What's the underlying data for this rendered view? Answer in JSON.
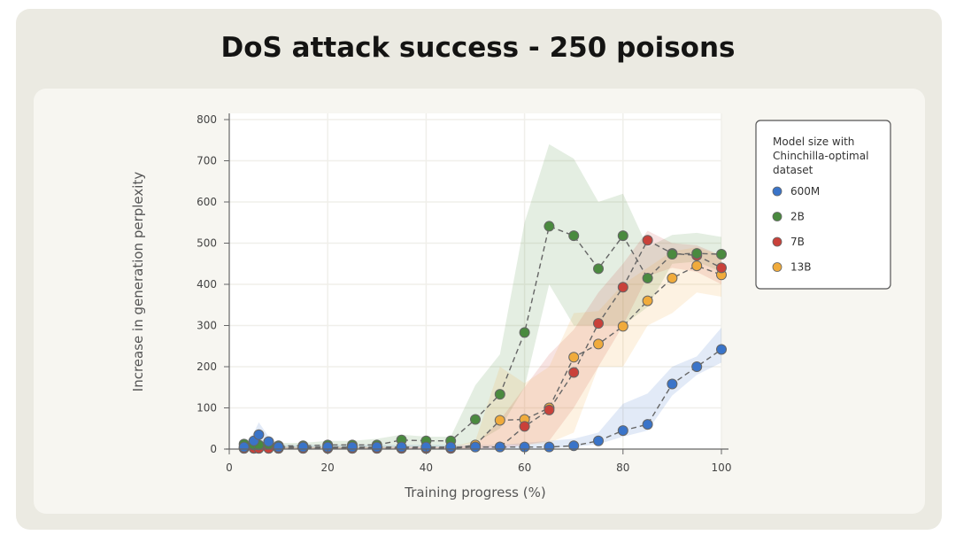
{
  "title": "DoS attack success - 250 poisons",
  "chart_data": {
    "type": "line",
    "title": "DoS attack success - 250 poisons",
    "xlabel": "Training progress (%)",
    "ylabel": "Increase in generation perplexity",
    "xlim": [
      0,
      100
    ],
    "ylim": [
      0,
      800
    ],
    "xticks": [
      0,
      20,
      40,
      60,
      80,
      100
    ],
    "yticks": [
      0,
      100,
      200,
      300,
      400,
      500,
      600,
      700,
      800
    ],
    "grid": true,
    "legend": {
      "title": "Model size with Chinchilla-optimal dataset",
      "title_lines": [
        "Model size with",
        "Chinchilla-optimal",
        "dataset"
      ],
      "placement": "right"
    },
    "x": [
      3,
      5,
      6,
      8,
      10,
      15,
      20,
      25,
      30,
      35,
      40,
      45,
      50,
      55,
      60,
      65,
      70,
      75,
      80,
      85,
      90,
      95,
      100
    ],
    "series": [
      {
        "name": "600M",
        "color": "#3a74c9",
        "values": [
          5,
          20,
          35,
          18,
          5,
          5,
          5,
          5,
          5,
          5,
          5,
          5,
          5,
          5,
          5,
          5,
          8,
          20,
          45,
          60,
          158,
          200,
          242
        ],
        "lower": [
          0,
          0,
          0,
          0,
          0,
          0,
          0,
          0,
          0,
          0,
          0,
          0,
          0,
          0,
          0,
          2,
          5,
          12,
          30,
          45,
          130,
          180,
          210
        ],
        "upper": [
          10,
          40,
          65,
          30,
          10,
          10,
          10,
          10,
          10,
          10,
          10,
          10,
          10,
          10,
          15,
          20,
          25,
          40,
          110,
          135,
          200,
          225,
          295
        ]
      },
      {
        "name": "2B",
        "color": "#4a8a3f",
        "values": [
          12,
          10,
          10,
          12,
          8,
          8,
          10,
          10,
          10,
          22,
          20,
          20,
          72,
          133,
          283,
          541,
          518,
          438,
          518,
          415,
          473,
          475,
          473
        ],
        "lower": [
          0,
          0,
          0,
          0,
          0,
          0,
          0,
          0,
          0,
          5,
          5,
          5,
          15,
          50,
          150,
          400,
          300,
          300,
          300,
          345,
          450,
          455,
          430
        ],
        "upper": [
          25,
          20,
          20,
          25,
          15,
          15,
          20,
          20,
          25,
          35,
          30,
          30,
          155,
          230,
          550,
          740,
          705,
          600,
          620,
          490,
          520,
          525,
          515
        ]
      },
      {
        "name": "7B",
        "color": "#c9413a",
        "values": [
          2,
          2,
          2,
          2,
          2,
          2,
          2,
          2,
          2,
          2,
          2,
          2,
          5,
          5,
          55,
          95,
          186,
          305,
          393,
          507,
          475,
          470,
          440
        ],
        "lower": [
          0,
          0,
          0,
          0,
          0,
          0,
          0,
          0,
          0,
          0,
          0,
          0,
          0,
          0,
          10,
          20,
          100,
          200,
          300,
          420,
          440,
          430,
          400
        ],
        "upper": [
          5,
          5,
          5,
          5,
          5,
          5,
          5,
          5,
          5,
          5,
          5,
          5,
          10,
          70,
          150,
          230,
          290,
          380,
          450,
          530,
          500,
          495,
          470
        ]
      },
      {
        "name": "13B",
        "color": "#f0ab3c",
        "values": [
          2,
          2,
          2,
          2,
          2,
          2,
          2,
          2,
          2,
          2,
          2,
          2,
          10,
          70,
          72,
          100,
          223,
          255,
          298,
          360,
          415,
          445,
          423
        ],
        "lower": [
          0,
          0,
          0,
          0,
          0,
          0,
          0,
          0,
          0,
          0,
          0,
          0,
          0,
          10,
          10,
          15,
          40,
          200,
          200,
          300,
          330,
          380,
          370
        ],
        "upper": [
          5,
          5,
          5,
          5,
          5,
          5,
          5,
          5,
          5,
          5,
          5,
          5,
          20,
          200,
          160,
          200,
          330,
          335,
          400,
          440,
          480,
          490,
          470
        ]
      }
    ]
  }
}
